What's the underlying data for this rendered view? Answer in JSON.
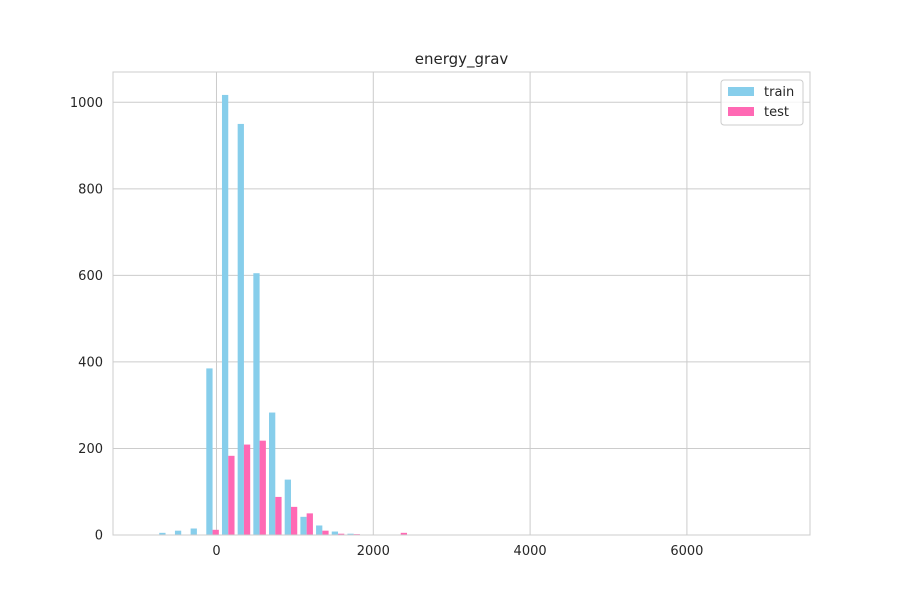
{
  "chart_data": {
    "type": "bar",
    "title": "energy_grav",
    "xlabel": "",
    "ylabel": "",
    "xlim": [
      -1320,
      7570
    ],
    "ylim": [
      0,
      1070
    ],
    "grid": true,
    "legend_position": "top-right",
    "x_ticks": [
      0,
      2000,
      4000,
      6000
    ],
    "x_tick_labels": [
      "0",
      "2000",
      "4000",
      "6000"
    ],
    "y_ticks": [
      0,
      200,
      400,
      600,
      800,
      1000
    ],
    "y_tick_labels": [
      "0",
      "200",
      "400",
      "600",
      "800",
      "1000"
    ],
    "bin_edges": [
      -750,
      -550,
      -350,
      -150,
      50,
      250,
      450,
      650,
      850,
      1050,
      1250,
      1450,
      1650,
      1850,
      2050,
      2250,
      2450,
      2650,
      2850,
      3050,
      3250,
      3450,
      3650,
      3850,
      4050,
      4250,
      4450,
      4650,
      4850,
      5050,
      5250,
      5450,
      5650,
      5850,
      6050,
      6250,
      6450,
      6650,
      6850,
      7050,
      7250
    ],
    "series": [
      {
        "name": "train",
        "color": "#87CEEB",
        "values": [
          5,
          10,
          15,
          385,
          1017,
          950,
          605,
          283,
          128,
          42,
          22,
          8,
          3,
          1,
          1,
          1,
          1,
          1,
          1,
          1,
          1,
          0,
          0,
          0,
          0,
          0,
          0,
          0,
          0,
          0,
          0,
          0,
          0,
          0,
          0,
          0,
          0,
          0,
          0,
          0
        ]
      },
      {
        "name": "test",
        "color": "#FF69B4",
        "values": [
          0,
          0,
          0,
          12,
          183,
          209,
          218,
          88,
          65,
          50,
          10,
          3,
          2,
          0,
          0,
          5,
          1,
          0,
          0,
          0,
          0,
          0,
          0,
          0,
          0,
          0,
          0,
          0,
          0,
          0,
          0,
          0,
          0,
          0,
          0,
          0,
          0,
          0,
          0,
          0
        ]
      }
    ]
  }
}
